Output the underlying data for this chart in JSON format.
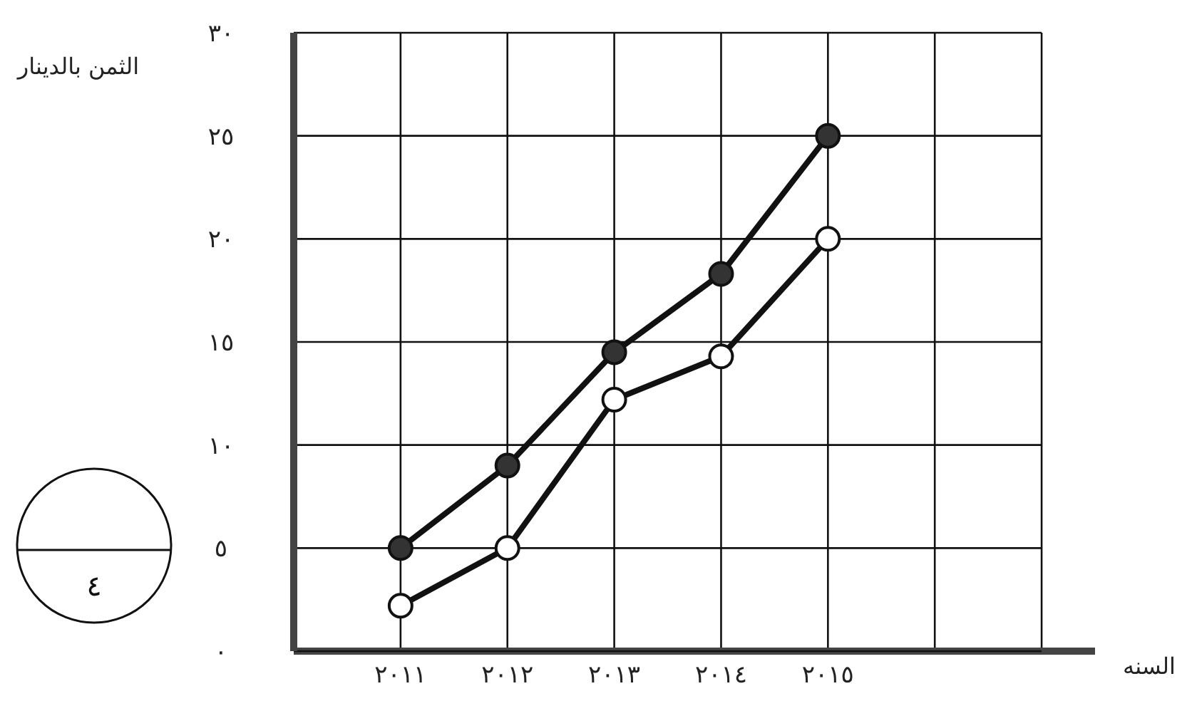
{
  "chart_data": {
    "type": "line",
    "ylabel": "الثمن بالدينار",
    "xlabel": "السنه",
    "x": [
      2011,
      2012,
      2013,
      2014,
      2015
    ],
    "series": [
      {
        "color": "#333333",
        "values": [
          5,
          9,
          14.5,
          18.3,
          25
        ]
      },
      {
        "color": "#ffffff",
        "values": [
          2.2,
          5,
          12.2,
          14.3,
          20
        ]
      }
    ],
    "xlim": [
      2010,
      2017.5
    ],
    "xticks": [
      {
        "value": 2011,
        "label": "٢٠١١"
      },
      {
        "value": 2012,
        "label": "٢٠١٢"
      },
      {
        "value": 2013,
        "label": "٢٠١٣"
      },
      {
        "value": 2014,
        "label": "٢٠١٤"
      },
      {
        "value": 2015,
        "label": "٢٠١٥"
      },
      {
        "value": 2016,
        "label": null
      },
      {
        "value": 2017,
        "label": null
      }
    ],
    "ylim": [
      0,
      30
    ],
    "yticks": [
      {
        "value": 0,
        "label": "٠"
      },
      {
        "value": 5,
        "label": "٥"
      },
      {
        "value": 10,
        "label": "١٠"
      },
      {
        "value": 15,
        "label": "١٥"
      },
      {
        "value": 20,
        "label": "٢٠"
      },
      {
        "value": 25,
        "label": "٢٥"
      },
      {
        "value": 30,
        "label": "٣٠"
      }
    ],
    "grid": true,
    "marker": "circle",
    "line_style": "solid",
    "annotations": [
      "٤"
    ]
  }
}
